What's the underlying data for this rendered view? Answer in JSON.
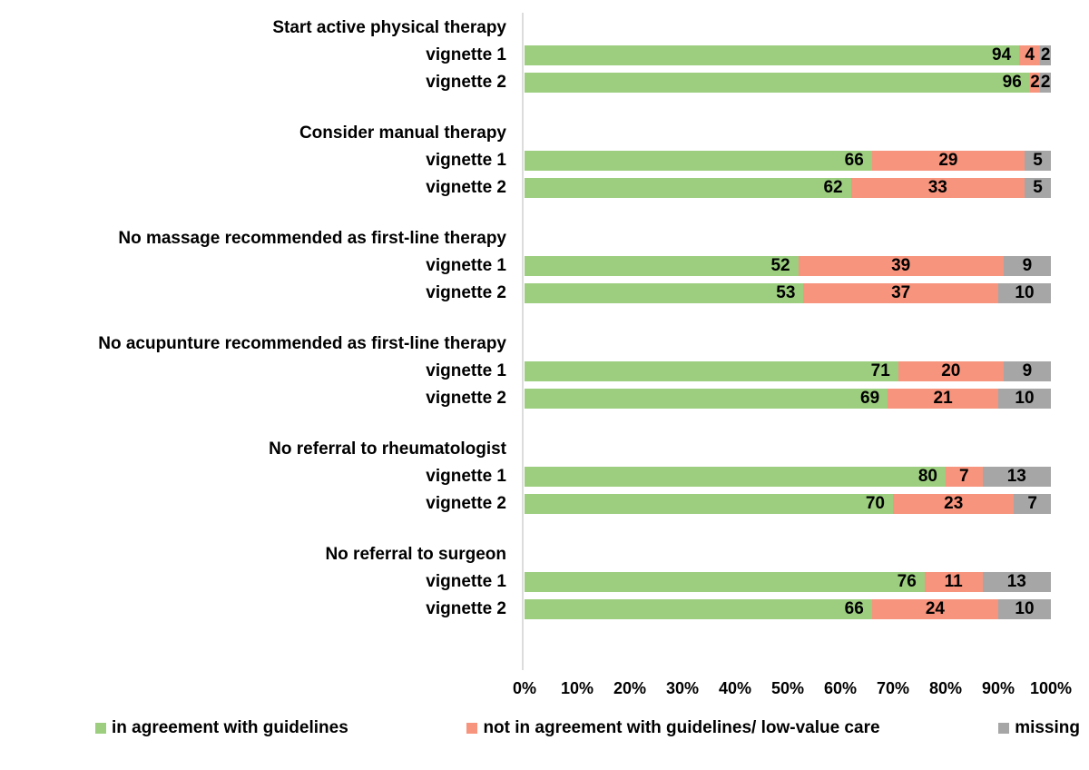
{
  "chart_data": {
    "type": "bar",
    "variant": "horizontal-stacked-percent",
    "title": "",
    "xlabel": "",
    "ylabel": "",
    "xlim": [
      0,
      100
    ],
    "grid": false,
    "legend_position": "bottom",
    "x_ticks": [
      "0%",
      "10%",
      "20%",
      "30%",
      "40%",
      "50%",
      "60%",
      "70%",
      "80%",
      "90%",
      "100%"
    ],
    "series": [
      {
        "name": "in agreement with guidelines",
        "key": "agree",
        "color": "#9dce80"
      },
      {
        "name": "not in agreement with guidelines/ low-value care",
        "key": "disagree",
        "color": "#f6947d"
      },
      {
        "name": "missing",
        "key": "missing",
        "color": "#a6a6a6"
      }
    ],
    "groups": [
      {
        "title": "Start active physical therapy",
        "rows": [
          {
            "label": "vignette 1",
            "values": [
              94,
              4,
              2
            ]
          },
          {
            "label": "vignette 2",
            "values": [
              96,
              2,
              2
            ]
          }
        ]
      },
      {
        "title": "Consider manual therapy",
        "rows": [
          {
            "label": "vignette 1",
            "values": [
              66,
              29,
              5
            ]
          },
          {
            "label": "vignette 2",
            "values": [
              62,
              33,
              5
            ]
          }
        ]
      },
      {
        "title": "No massage recommended as first-line therapy",
        "rows": [
          {
            "label": "vignette 1",
            "values": [
              52,
              39,
              9
            ]
          },
          {
            "label": "vignette 2",
            "values": [
              53,
              37,
              10
            ]
          }
        ]
      },
      {
        "title": "No acupunture recommended as first-line therapy",
        "rows": [
          {
            "label": "vignette 1",
            "values": [
              71,
              20,
              9
            ]
          },
          {
            "label": "vignette 2",
            "values": [
              69,
              21,
              10
            ]
          }
        ]
      },
      {
        "title": "No referral to rheumatologist",
        "rows": [
          {
            "label": "vignette 1",
            "values": [
              80,
              7,
              13
            ]
          },
          {
            "label": "vignette 2",
            "values": [
              70,
              23,
              7
            ]
          }
        ]
      },
      {
        "title": "No referral to surgeon",
        "rows": [
          {
            "label": "vignette 1",
            "values": [
              76,
              11,
              13
            ]
          },
          {
            "label": "vignette 2",
            "values": [
              66,
              24,
              10
            ]
          }
        ]
      }
    ],
    "axis_line_color": "#dcdcdc",
    "text_color": "#000000"
  }
}
